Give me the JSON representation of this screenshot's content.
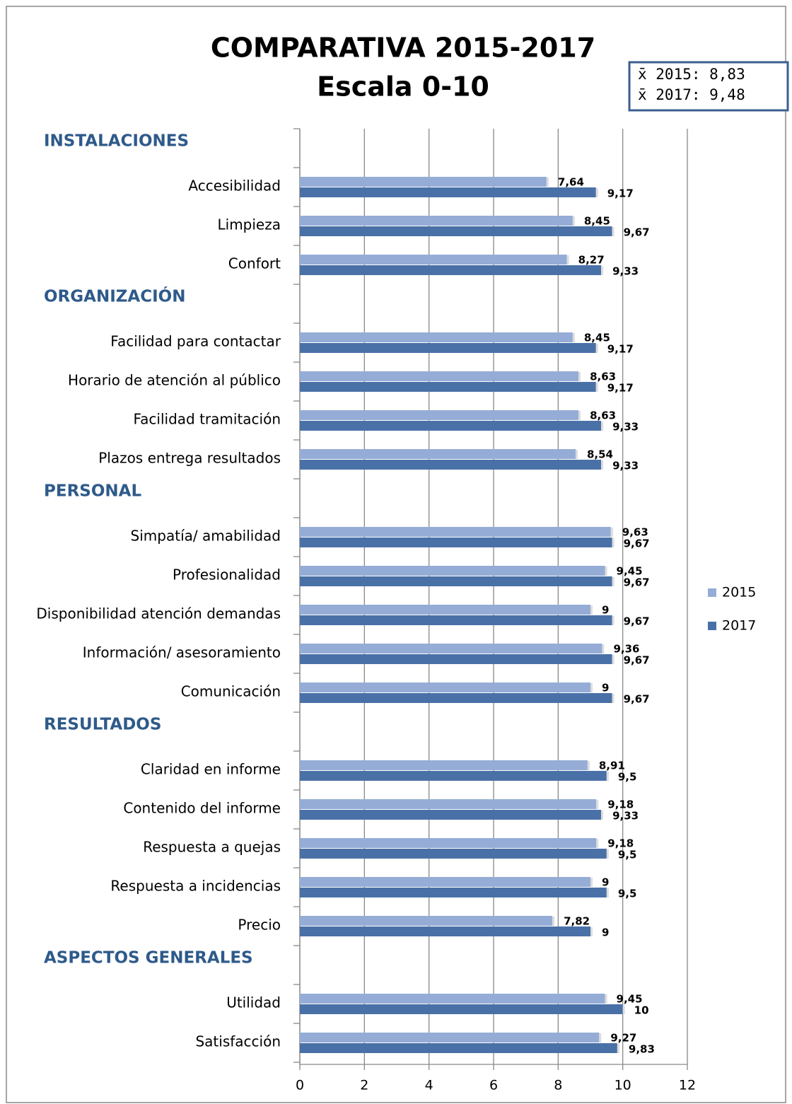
{
  "chart_data": {
    "type": "bar",
    "orientation": "horizontal",
    "title": "COMPARATIVA 2015-2017",
    "subtitle": "Escala 0-10",
    "annotation": [
      "x̄ 2015: 8,83",
      "x̄ 2017: 9,48"
    ],
    "series": [
      {
        "name": "2015",
        "color": "#95add6"
      },
      {
        "name": "2017",
        "color": "#4a71a7"
      }
    ],
    "groups": [
      {
        "name": "INSTALACIONES",
        "categories": [
          "Accesibilidad",
          "Limpieza",
          "Confort"
        ],
        "values": [
          [
            7.64,
            9.17
          ],
          [
            8.45,
            9.67
          ],
          [
            8.27,
            9.33
          ]
        ],
        "value_labels": [
          [
            "7,64",
            "9,17"
          ],
          [
            "8,45",
            "9,67"
          ],
          [
            "8,27",
            "9,33"
          ]
        ]
      },
      {
        "name": "ORGANIZACIÓN",
        "categories": [
          "Facilidad para contactar",
          "Horario de atención al público",
          "Facilidad tramitación",
          "Plazos entrega resultados"
        ],
        "values": [
          [
            8.45,
            9.17
          ],
          [
            8.63,
            9.17
          ],
          [
            8.63,
            9.33
          ],
          [
            8.54,
            9.33
          ]
        ],
        "value_labels": [
          [
            "8,45",
            "9,17"
          ],
          [
            "8,63",
            "9,17"
          ],
          [
            "8,63",
            "9,33"
          ],
          [
            "8,54",
            "9,33"
          ]
        ]
      },
      {
        "name": "PERSONAL",
        "categories": [
          "Simpatía/ amabilidad",
          "Profesionalidad",
          "Disponibilidad atención demandas",
          "Información/ asesoramiento",
          "Comunicación"
        ],
        "values": [
          [
            9.63,
            9.67
          ],
          [
            9.45,
            9.67
          ],
          [
            9,
            9.67
          ],
          [
            9.36,
            9.67
          ],
          [
            9,
            9.67
          ]
        ],
        "value_labels": [
          [
            "9,63",
            "9,67"
          ],
          [
            "9,45",
            "9,67"
          ],
          [
            "9",
            "9,67"
          ],
          [
            "9,36",
            "9,67"
          ],
          [
            "9",
            "9,67"
          ]
        ]
      },
      {
        "name": "RESULTADOS",
        "categories": [
          "Claridad en informe",
          "Contenido del informe",
          "Respuesta a quejas",
          "Respuesta a incidencias",
          "Precio"
        ],
        "values": [
          [
            8.91,
            9.5
          ],
          [
            9.18,
            9.33
          ],
          [
            9.18,
            9.5
          ],
          [
            9,
            9.5
          ],
          [
            7.82,
            9
          ]
        ],
        "value_labels": [
          [
            "8,91",
            "9,5"
          ],
          [
            "9,18",
            "9,33"
          ],
          [
            "9,18",
            "9,5"
          ],
          [
            "9",
            "9,5"
          ],
          [
            "7,82",
            "9"
          ]
        ]
      },
      {
        "name": "ASPECTOS GENERALES",
        "categories": [
          "Utilidad",
          "Satisfacción"
        ],
        "values": [
          [
            9.45,
            10
          ],
          [
            9.27,
            9.83
          ]
        ],
        "value_labels": [
          [
            "9,45",
            "10"
          ],
          [
            "9,27",
            "9,83"
          ]
        ]
      }
    ],
    "xlim": [
      0,
      12
    ],
    "xticks": [
      0,
      2,
      4,
      6,
      8,
      10,
      12
    ],
    "grid": true,
    "legend": "right"
  }
}
